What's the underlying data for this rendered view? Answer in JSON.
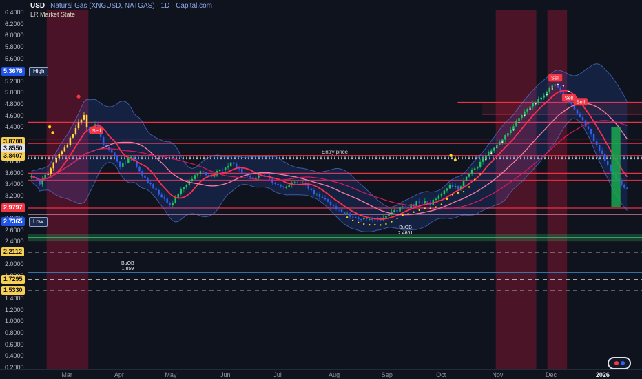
{
  "header": {
    "currency": "USD",
    "title": "Natural Gas (XNGUSD, NATGAS) · 1D · Capital.com",
    "indicator": "LR Market State"
  },
  "colors": {
    "bg": "#0f131d",
    "axis_text": "#b7bcc8",
    "up": "#1fc45f",
    "down": "#2e5ff2",
    "highlight": "#ffd93b",
    "band_fill": "rgba(57,112,255,0.16)",
    "band_edge": "rgba(96,142,255,0.55)",
    "ma_fast": "#fe2e4d",
    "ma_mid": "#f4799e",
    "ma_slow": "#d81b60",
    "bear_zone": "rgba(163,21,56,0.40)",
    "sell_bg": "#f23645",
    "entry_line": "#c9ccd6"
  },
  "price_axis": {
    "ticks": [
      {
        "label": "6.4000",
        "p": 6.4
      },
      {
        "label": "6.2000",
        "p": 6.2
      },
      {
        "label": "6.0000",
        "p": 6.0
      },
      {
        "label": "5.8000",
        "p": 5.8
      },
      {
        "label": "5.6000",
        "p": 5.6
      },
      {
        "label": "5.2000",
        "p": 5.2
      },
      {
        "label": "5.0000",
        "p": 5.0
      },
      {
        "label": "4.8000",
        "p": 4.8
      },
      {
        "label": "4.6000",
        "p": 4.6
      },
      {
        "label": "4.4000",
        "p": 4.4
      },
      {
        "label": "3.8000",
        "p": 3.8
      },
      {
        "label": "3.6000",
        "p": 3.6
      },
      {
        "label": "3.4000",
        "p": 3.4
      },
      {
        "label": "3.2000",
        "p": 3.2
      },
      {
        "label": "2.8000",
        "p": 2.8
      },
      {
        "label": "2.6000",
        "p": 2.6
      },
      {
        "label": "2.4000",
        "p": 2.4
      },
      {
        "label": "2.0000",
        "p": 2.0
      },
      {
        "label": "1.8000",
        "p": 1.8
      },
      {
        "label": "1.4000",
        "p": 1.4
      },
      {
        "label": "1.2000",
        "p": 1.2
      },
      {
        "label": "1.0000",
        "p": 1.0
      },
      {
        "label": "0.8000",
        "p": 0.8
      },
      {
        "label": "0.6000",
        "p": 0.6
      },
      {
        "label": "0.4000",
        "p": 0.4
      },
      {
        "label": "0.2000",
        "p": 0.2
      }
    ],
    "tags": [
      {
        "label": "5.3678",
        "p": 5.3678,
        "bg": "#1e53e5",
        "fg": "#ffffff",
        "side": "High"
      },
      {
        "label": "3.8708",
        "p": 3.8708,
        "bg": "#f7cf52",
        "fg": "#141414",
        "dy": -22
      },
      {
        "label": "3.8550",
        "p": 3.855,
        "bg": "#dfe2ea",
        "fg": "#141414",
        "dy": -13
      },
      {
        "label": "3.8407",
        "p": 3.8407,
        "bg": "#f7cf52",
        "fg": "#141414",
        "dy": -4
      },
      {
        "label": "2.9797",
        "p": 2.9797,
        "bg": "#f23645",
        "fg": "#ffffff"
      },
      {
        "label": "2.7365",
        "p": 2.7365,
        "bg": "#1e53e5",
        "fg": "#ffffff",
        "side": "Low"
      },
      {
        "label": "2.2112",
        "p": 2.2112,
        "bg": "#f7cf52",
        "fg": "#141414"
      },
      {
        "label": "1.7295",
        "p": 1.7295,
        "bg": "#f7cf52",
        "fg": "#141414"
      },
      {
        "label": "1.5330",
        "p": 1.533,
        "bg": "#f7cf52",
        "fg": "#141414"
      }
    ]
  },
  "time_axis": {
    "months": [
      {
        "label": "Mar",
        "t": 0.064
      },
      {
        "label": "Apr",
        "t": 0.149
      },
      {
        "label": "May",
        "t": 0.233
      },
      {
        "label": "Jun",
        "t": 0.322
      },
      {
        "label": "Jul",
        "t": 0.407
      },
      {
        "label": "Aug",
        "t": 0.499
      },
      {
        "label": "Sep",
        "t": 0.585
      },
      {
        "label": "Oct",
        "t": 0.673
      },
      {
        "label": "Nov",
        "t": 0.765
      },
      {
        "label": "Dec",
        "t": 0.852
      },
      {
        "label": "2026",
        "t": 0.936,
        "em": true
      }
    ]
  },
  "chart_data": {
    "type": "candlestick",
    "title": "Natural Gas (XNGUSD, NATGAS) · 1D · Capital.com",
    "ylabel": "USD",
    "y_range": [
      0.2,
      6.4
    ],
    "high": 5.3678,
    "low": 2.7365,
    "entry_price": 3.8407,
    "sell_label": "Sell",
    "num_candles": 216,
    "anchors": [
      [
        0.006,
        3.52
      ],
      [
        0.02,
        3.42
      ],
      [
        0.034,
        3.6
      ],
      [
        0.047,
        3.85
      ],
      [
        0.062,
        4.05
      ],
      [
        0.073,
        4.25
      ],
      [
        0.085,
        4.5
      ],
      [
        0.092,
        4.58
      ],
      [
        0.099,
        4.3
      ],
      [
        0.11,
        4.42
      ],
      [
        0.123,
        4.1
      ],
      [
        0.138,
        3.92
      ],
      [
        0.151,
        3.72
      ],
      [
        0.168,
        3.86
      ],
      [
        0.185,
        3.58
      ],
      [
        0.204,
        3.35
      ],
      [
        0.222,
        3.12
      ],
      [
        0.233,
        3.04
      ],
      [
        0.249,
        3.28
      ],
      [
        0.267,
        3.48
      ],
      [
        0.283,
        3.62
      ],
      [
        0.298,
        3.52
      ],
      [
        0.316,
        3.66
      ],
      [
        0.332,
        3.76
      ],
      [
        0.35,
        3.6
      ],
      [
        0.368,
        3.5
      ],
      [
        0.386,
        3.56
      ],
      [
        0.401,
        3.42
      ],
      [
        0.417,
        3.32
      ],
      [
        0.435,
        3.46
      ],
      [
        0.453,
        3.38
      ],
      [
        0.471,
        3.2
      ],
      [
        0.489,
        3.08
      ],
      [
        0.507,
        2.96
      ],
      [
        0.522,
        2.86
      ],
      [
        0.538,
        2.77
      ],
      [
        0.554,
        2.82
      ],
      [
        0.569,
        2.76
      ],
      [
        0.587,
        2.86
      ],
      [
        0.605,
        2.96
      ],
      [
        0.623,
        3.02
      ],
      [
        0.639,
        3.1
      ],
      [
        0.655,
        3.06
      ],
      [
        0.67,
        3.22
      ],
      [
        0.686,
        3.38
      ],
      [
        0.702,
        3.34
      ],
      [
        0.717,
        3.56
      ],
      [
        0.734,
        3.74
      ],
      [
        0.751,
        3.94
      ],
      [
        0.767,
        4.1
      ],
      [
        0.783,
        4.32
      ],
      [
        0.798,
        4.52
      ],
      [
        0.814,
        4.72
      ],
      [
        0.83,
        4.88
      ],
      [
        0.845,
        5.02
      ],
      [
        0.859,
        5.16
      ],
      [
        0.87,
        4.98
      ],
      [
        0.883,
        4.84
      ],
      [
        0.897,
        4.62
      ],
      [
        0.91,
        4.4
      ],
      [
        0.921,
        4.18
      ],
      [
        0.933,
        3.96
      ],
      [
        0.944,
        3.72
      ],
      [
        0.955,
        3.52
      ],
      [
        0.966,
        3.38
      ],
      [
        0.978,
        3.3
      ],
      [
        0.989,
        3.42
      ],
      [
        0.998,
        3.36
      ]
    ],
    "yellow_ranges": [
      [
        0.03,
        0.097
      ]
    ],
    "yellow_dot_range": [
      0.515,
      0.745
    ],
    "white_dot_range": [
      0.745,
      0.897
    ],
    "vertical_bands": [
      {
        "t0": 0.031,
        "t1": 0.099,
        "color": "rgba(163,21,56,0.40)"
      },
      {
        "t0": 0.762,
        "t1": 0.828,
        "color": "rgba(163,21,56,0.42)"
      },
      {
        "t0": 0.846,
        "t1": 0.878,
        "color": "rgba(163,21,56,0.42)"
      }
    ],
    "horizontal_bands": [
      {
        "p0": 2.4,
        "p1": 2.53,
        "t0": 0,
        "t1": 1,
        "color": "rgba(46,160,90,0.32)"
      },
      {
        "p0": 4.62,
        "p1": 4.83,
        "t0": 0.74,
        "t1": 1,
        "color": "rgba(239,47,68,0.10)"
      }
    ],
    "horizontal_lines": [
      {
        "p": 4.83,
        "color": "#ef2f44",
        "t0": 0.7,
        "t1": 1,
        "w": 1.2
      },
      {
        "p": 4.62,
        "color": "#ef2f44",
        "t0": 0.74,
        "t1": 1,
        "w": 1
      },
      {
        "p": 4.48,
        "color": "#ef2f44",
        "t0": 0,
        "t1": 1,
        "w": 1.4
      },
      {
        "p": 4.19,
        "color": "#ef2f44",
        "t0": 0,
        "t1": 1,
        "w": 1
      },
      {
        "p": 4.11,
        "color": "#ef2f44",
        "t0": 0,
        "t1": 1,
        "w": 1
      },
      {
        "p": 3.9,
        "color": "#ef2f44",
        "t0": 0,
        "t1": 1,
        "w": 1
      },
      {
        "p": 3.59,
        "color": "#ef2f44",
        "t0": 0,
        "t1": 1,
        "w": 1.2
      },
      {
        "p": 3.47,
        "color": "#ef2f44",
        "t0": 0,
        "t1": 1,
        "w": 1
      },
      {
        "p": 2.9797,
        "color": "#ef2f44",
        "t0": 0,
        "t1": 1,
        "w": 1.2
      },
      {
        "p": 2.87,
        "color": "#ff8fa3",
        "t0": 0,
        "t1": 1,
        "w": 1
      },
      {
        "p": 2.4661,
        "color": "#35b06a",
        "t0": 0,
        "t1": 1,
        "w": 1
      },
      {
        "p": 1.859,
        "color": "#3f8fd8",
        "t0": 0,
        "t1": 1,
        "w": 1.4
      },
      {
        "p": 3.8708,
        "color": "#c9ccd6",
        "dash": "2,3",
        "t0": 0,
        "t1": 1,
        "w": 1
      },
      {
        "p": 3.8407,
        "color": "#c9ccd6",
        "dash": "2,3",
        "t0": 0,
        "t1": 1,
        "w": 1
      },
      {
        "p": 2.2112,
        "color": "#d6d9e0",
        "dash": "6,5",
        "t0": 0,
        "t1": 1,
        "w": 1
      },
      {
        "p": 1.7295,
        "color": "#d6d9e0",
        "dash": "6,5",
        "t0": 0,
        "t1": 1,
        "w": 1
      },
      {
        "p": 1.533,
        "color": "#d6d9e0",
        "dash": "6,5",
        "t0": 0,
        "t1": 1,
        "w": 1
      }
    ],
    "annotations": [
      {
        "t": 0.5,
        "p": 3.93,
        "text": "Entry price",
        "color": "#cfd3dc",
        "size": 8
      },
      {
        "t": 0.615,
        "p": 2.62,
        "lines": [
          "BuOB",
          "2.4661"
        ],
        "color": "#e8ebf2",
        "size": 7
      },
      {
        "t": 0.163,
        "p": 1.99,
        "lines": [
          "BuOB",
          "1.859"
        ],
        "color": "#e8ebf2",
        "size": 7
      }
    ],
    "sell_tags": [
      {
        "t": 0.112,
        "p": 4.26
      },
      {
        "t": 0.859,
        "p": 5.18
      },
      {
        "t": 0.881,
        "p": 4.83
      },
      {
        "t": 0.9,
        "p": 4.76
      }
    ],
    "dots": [
      {
        "t": 0.036,
        "p": 4.4,
        "color": "#ffd21e",
        "r": 2.2
      },
      {
        "t": 0.041,
        "p": 4.3,
        "color": "#ffd21e",
        "r": 2.2
      },
      {
        "t": 0.083,
        "p": 4.93,
        "color": "#f23645",
        "r": 2.6
      },
      {
        "t": 0.689,
        "p": 3.9,
        "color": "#ffd21e",
        "r": 2.2
      },
      {
        "t": 0.696,
        "p": 3.82,
        "color": "#ffd21e",
        "r": 2.0
      }
    ],
    "target_box": {
      "t0": 0.95,
      "t1": 0.965,
      "p0": 3.0,
      "p1": 4.4,
      "color": "rgba(26,168,80,0.85)"
    }
  }
}
